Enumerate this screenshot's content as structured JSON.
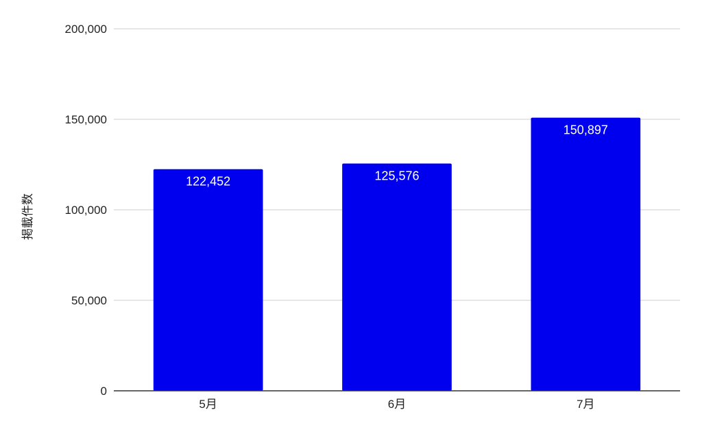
{
  "chart_data": {
    "type": "bar",
    "title": "",
    "xlabel": "",
    "ylabel": "掲載件数",
    "categories": [
      "5月",
      "6月",
      "7月"
    ],
    "series": [
      {
        "values": [
          122452,
          125576,
          150897
        ],
        "color": "#0000ee"
      }
    ],
    "data_labels": [
      "122,452",
      "125,576",
      "150,897"
    ],
    "ylim": [
      0,
      200000
    ],
    "yticks": [
      0,
      50000,
      100000,
      150000,
      200000
    ],
    "ytick_labels": [
      "0",
      "50,000",
      "100,000",
      "150,000",
      "200,000"
    ],
    "grid": true,
    "legend": "none"
  }
}
